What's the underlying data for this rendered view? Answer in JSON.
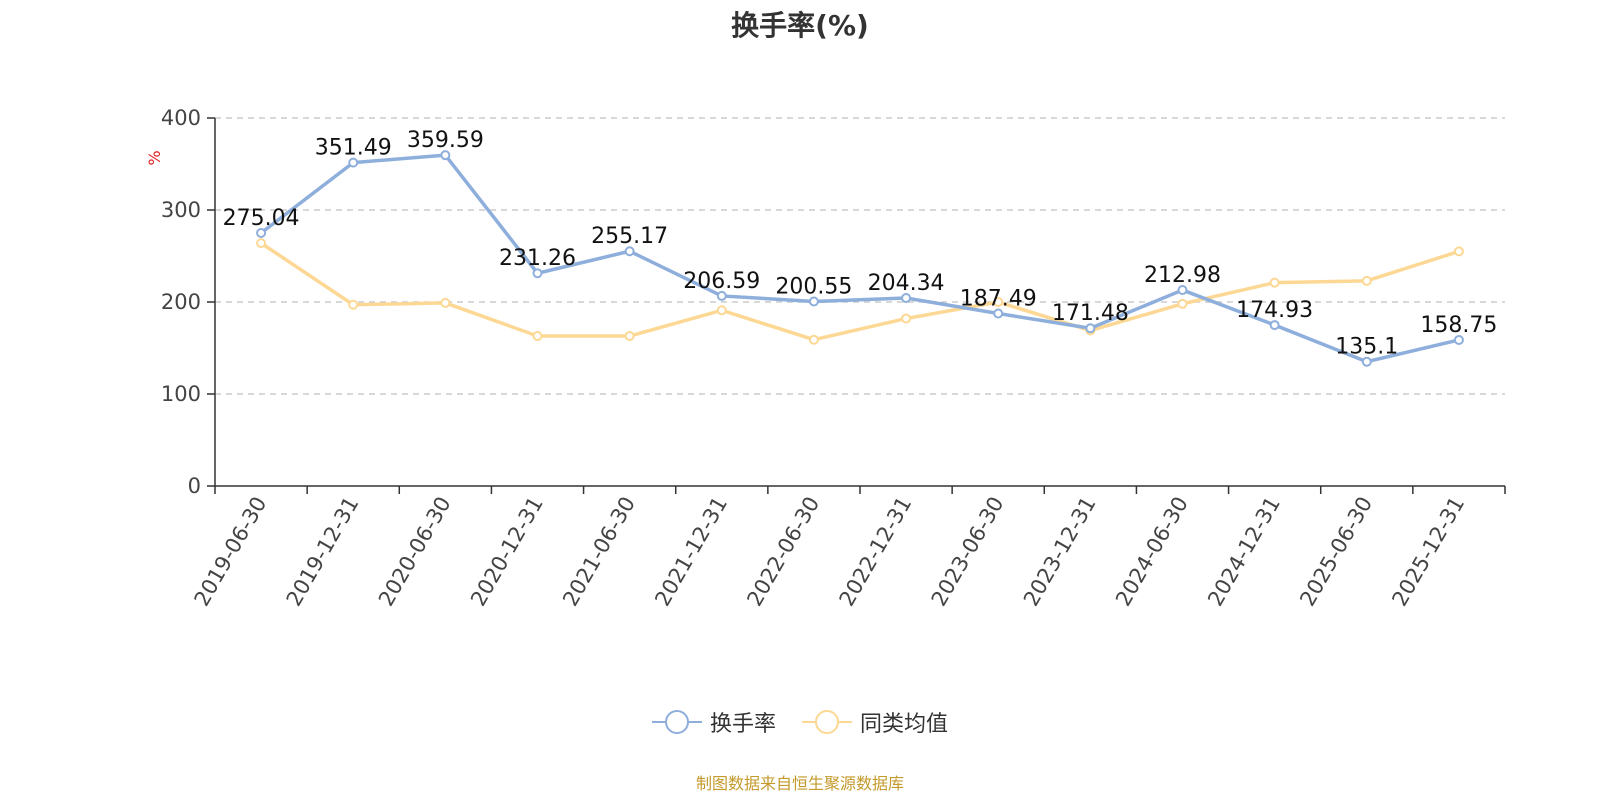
{
  "chart_data": {
    "type": "line",
    "title": "换手率(%)",
    "ylabel": "%",
    "xlabel": "",
    "ylim": [
      0,
      400
    ],
    "yticks": [
      0,
      100,
      200,
      300,
      400
    ],
    "grid": true,
    "legend_position": "bottom-center",
    "categories": [
      "2019-06-30",
      "2019-12-31",
      "2020-06-30",
      "2020-12-31",
      "2021-06-30",
      "2021-12-31",
      "2022-06-30",
      "2022-12-31",
      "2023-06-30",
      "2023-12-31",
      "2024-06-30",
      "2024-12-31",
      "2025-06-30",
      "2025-12-31"
    ],
    "series": [
      {
        "name": "换手率",
        "color": "#8eaedc",
        "show_labels": true,
        "values": [
          275.04,
          351.49,
          359.59,
          231.26,
          255.17,
          206.59,
          200.55,
          204.34,
          187.49,
          171.48,
          212.98,
          174.93,
          135.1,
          158.75
        ]
      },
      {
        "name": "同类均值",
        "color": "#fcd894",
        "show_labels": false,
        "values": [
          264,
          197,
          199,
          163,
          163,
          191,
          159,
          182,
          200,
          169,
          198,
          221,
          223,
          255
        ]
      }
    ]
  },
  "footer": {
    "source": "制图数据来自恒生聚源数据库"
  }
}
